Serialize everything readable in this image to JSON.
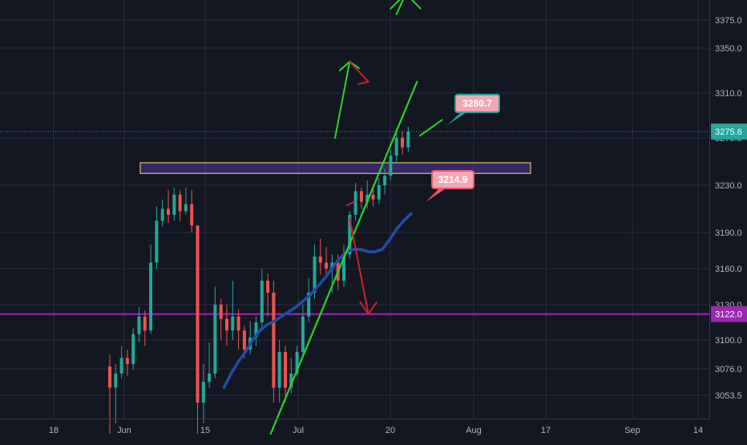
{
  "chart_data": {
    "type": "candlestick",
    "title": "",
    "xlabel": "",
    "ylabel": "",
    "x_ticks": [
      "18",
      "Jun",
      "15",
      "Jul",
      "20",
      "Aug",
      "17",
      "Sep",
      "14"
    ],
    "y_ticks": [
      3053.5,
      3076.0,
      3100.0,
      3130.0,
      3160.0,
      3190.0,
      3230.0,
      3270.0,
      3310.0,
      3350.0,
      3375.0
    ],
    "y_tick_labels": [
      "3053.5",
      "3076.0",
      "3100.0",
      "3130.0",
      "3160.0",
      "3190.0",
      "3230.0",
      "3270.0",
      "3310.0",
      "3350.0",
      "3375.0"
    ],
    "ylim": [
      3035,
      3390
    ],
    "current_price": {
      "label": "3275.6",
      "value": 3275.6,
      "color": "#26a69a"
    },
    "horizontal_line": {
      "label": "3122.0",
      "value": 3122.0,
      "color": "#9c27b0"
    },
    "resistance_zone": {
      "low": 3240,
      "high": 3249,
      "color": "#f5e663"
    },
    "callouts": [
      {
        "label": "3280.7",
        "color": "#26a69a"
      },
      {
        "label": "3214.9",
        "color": "#e8596b"
      }
    ],
    "colors": {
      "up": "#26a69a",
      "down": "#ef5350",
      "ma": "#1f4fa8",
      "bull_arrow": "#2bd52b",
      "bear_arrow": "#d0202a"
    },
    "candles": [
      [
        3078,
        3060,
        3088,
        3035
      ],
      [
        3060,
        3072,
        3080,
        3040
      ],
      [
        3072,
        3085,
        3095,
        3068
      ],
      [
        3085,
        3080,
        3092,
        3070
      ],
      [
        3080,
        3105,
        3110,
        3075
      ],
      [
        3105,
        3120,
        3128,
        3098
      ],
      [
        3120,
        3108,
        3125,
        3095
      ],
      [
        3108,
        3165,
        3180,
        3105
      ],
      [
        3165,
        3200,
        3212,
        3160
      ],
      [
        3200,
        3210,
        3218,
        3195
      ],
      [
        3210,
        3205,
        3226,
        3198
      ],
      [
        3205,
        3222,
        3228,
        3200
      ],
      [
        3222,
        3208,
        3226,
        3200
      ],
      [
        3208,
        3214,
        3228,
        3205
      ],
      [
        3214,
        3196,
        3226,
        3190
      ],
      [
        3196,
        3050,
        3122,
        3035
      ],
      [
        3050,
        3065,
        3080,
        3040
      ],
      [
        3065,
        3072,
        3098,
        3060
      ],
      [
        3072,
        3130,
        3145,
        3068
      ],
      [
        3130,
        3118,
        3135,
        3100
      ],
      [
        3118,
        3108,
        3130,
        3095
      ],
      [
        3108,
        3120,
        3150,
        3100
      ],
      [
        3120,
        3108,
        3126,
        3092
      ],
      [
        3108,
        3092,
        3112,
        3085
      ],
      [
        3092,
        3102,
        3116,
        3088
      ],
      [
        3102,
        3115,
        3120,
        3095
      ],
      [
        3115,
        3150,
        3160,
        3110
      ],
      [
        3150,
        3140,
        3156,
        3120
      ],
      [
        3140,
        3060,
        3150,
        3050
      ],
      [
        3060,
        3090,
        3100,
        3050
      ],
      [
        3090,
        3060,
        3095,
        3050
      ],
      [
        3060,
        3072,
        3085,
        3055
      ],
      [
        3072,
        3090,
        3095,
        3070
      ],
      [
        3090,
        3120,
        3130,
        3085
      ],
      [
        3120,
        3140,
        3152,
        3115
      ],
      [
        3140,
        3170,
        3180,
        3135
      ],
      [
        3170,
        3165,
        3185,
        3155
      ],
      [
        3165,
        3160,
        3178,
        3152
      ],
      [
        3160,
        3165,
        3172,
        3140
      ],
      [
        3165,
        3150,
        3172,
        3142
      ],
      [
        3150,
        3172,
        3180,
        3145
      ],
      [
        3172,
        3205,
        3208,
        3168
      ],
      [
        3205,
        3225,
        3232,
        3200
      ],
      [
        3225,
        3216,
        3228,
        3210
      ],
      [
        3216,
        3222,
        3234,
        3210
      ],
      [
        3222,
        3218,
        3230,
        3212
      ],
      [
        3218,
        3230,
        3236,
        3214
      ],
      [
        3230,
        3238,
        3244,
        3222
      ],
      [
        3238,
        3255,
        3260,
        3234
      ],
      [
        3255,
        3270,
        3278,
        3250
      ],
      [
        3270,
        3262,
        3276,
        3256
      ],
      [
        3262,
        3275.6,
        3280,
        3258
      ]
    ],
    "ma": [
      3060,
      3072,
      3082,
      3090,
      3100,
      3108,
      3113,
      3116,
      3120,
      3124,
      3128,
      3133,
      3138,
      3145,
      3152,
      3160,
      3168,
      3174,
      3176,
      3176,
      3174,
      3174,
      3176,
      3184,
      3193,
      3200,
      3206
    ],
    "annotation_lines": [
      {
        "kind": "trendline",
        "color": "#2bd52b",
        "width": 2.2,
        "points": [
          [
            27.5,
            3035
          ],
          [
            52.5,
            3320
          ]
        ]
      },
      {
        "kind": "path",
        "color": "#2bd52b",
        "width": 2,
        "points": [
          [
            38.5,
            3270
          ],
          [
            41,
            3338
          ]
        ]
      },
      {
        "kind": "path",
        "color": "#2bd52b",
        "width": 2,
        "points": [
          [
            39.3,
            3330
          ],
          [
            41,
            3338
          ],
          [
            42.6,
            3332
          ]
        ]
      },
      {
        "kind": "path",
        "color": "#2bd52b",
        "width": 2,
        "points": [
          [
            49,
            3380
          ],
          [
            50.6,
            3398
          ]
        ]
      },
      {
        "kind": "path",
        "color": "#2bd52b",
        "width": 2,
        "points": [
          [
            48,
            3385
          ],
          [
            50.6,
            3398
          ],
          [
            53.1,
            3385
          ]
        ]
      },
      {
        "kind": "path",
        "color": "#2bd52b",
        "width": 2,
        "points": [
          [
            53,
            3272
          ],
          [
            56.8,
            3286
          ]
        ]
      },
      {
        "kind": "path",
        "color": "#d0202a",
        "width": 2,
        "points": [
          [
            41,
            3338
          ],
          [
            44.2,
            3320
          ]
        ]
      },
      {
        "kind": "path",
        "color": "#d0202a",
        "width": 2,
        "points": [
          [
            43.3,
            3325
          ],
          [
            44.2,
            3320
          ],
          [
            42.5,
            3318
          ]
        ]
      },
      {
        "kind": "path",
        "color": "#d0202a",
        "width": 2,
        "points": [
          [
            40.5,
            3213
          ],
          [
            41.8,
            3216
          ]
        ]
      },
      {
        "kind": "path",
        "color": "#d0202a",
        "width": 2,
        "points": [
          [
            41,
            3202
          ],
          [
            44.2,
            3122
          ]
        ]
      },
      {
        "kind": "path",
        "color": "#d0202a",
        "width": 2,
        "points": [
          [
            42.8,
            3132
          ],
          [
            44.2,
            3122
          ],
          [
            45.6,
            3132
          ]
        ]
      }
    ]
  }
}
